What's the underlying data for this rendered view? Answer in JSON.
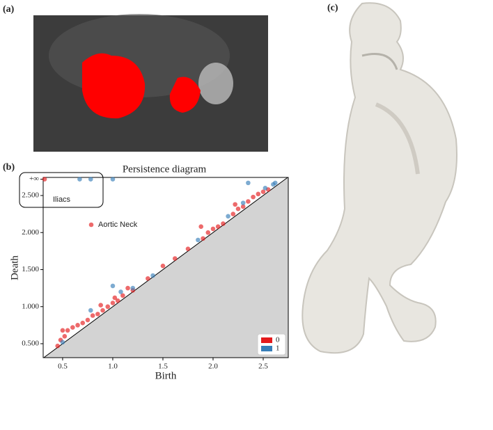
{
  "panel_labels": [
    "(a)",
    "(b)",
    "(c)"
  ],
  "chart_data": {
    "type": "scatter",
    "title": "Persistence diagram",
    "x_label": "Birth",
    "y_label": "Death",
    "xlim": [
      0.306,
      2.75
    ],
    "ylim": [
      0.312,
      2.744
    ],
    "xticks": [
      {
        "value": 0.5,
        "label": "0.5"
      },
      {
        "value": 1,
        "label": "1.0"
      },
      {
        "value": 1.5,
        "label": "1.5"
      },
      {
        "value": 2,
        "label": "2.0"
      },
      {
        "value": 2.5,
        "label": "2.5"
      }
    ],
    "yticks": [
      {
        "value": 0.5,
        "label": "0.500"
      },
      {
        "value": 1,
        "label": "1.000"
      },
      {
        "value": 1.5,
        "label": "1.500"
      },
      {
        "value": 2,
        "label": "2.000"
      },
      {
        "value": 2.5,
        "label": "2.500"
      },
      {
        "value": 2.72,
        "label": "+∞"
      }
    ],
    "legend_position": "lower right",
    "series": [
      {
        "name": "0",
        "color": "#e41a1c",
        "x": [
          0.32,
          0.45,
          0.48,
          0.5,
          0.55,
          0.52,
          0.6,
          0.65,
          0.7,
          0.75,
          0.8,
          0.85,
          0.9,
          0.95,
          1.0,
          1.02,
          0.88,
          1.05,
          1.1,
          1.2,
          1.35,
          1.5,
          1.62,
          1.75,
          1.9,
          1.95,
          2.0,
          2.05,
          2.1,
          2.2,
          2.25,
          2.3,
          2.35,
          2.4,
          2.45,
          2.5,
          2.55,
          1.88,
          2.22,
          1.15
        ],
        "values": [
          2.72,
          0.47,
          0.55,
          0.68,
          0.68,
          0.6,
          0.72,
          0.75,
          0.78,
          0.82,
          0.88,
          0.9,
          0.95,
          1.0,
          1.05,
          1.12,
          1.02,
          1.08,
          1.15,
          1.22,
          1.38,
          1.55,
          1.65,
          1.78,
          1.92,
          2.0,
          2.05,
          2.08,
          2.12,
          2.25,
          2.32,
          2.35,
          2.42,
          2.48,
          2.52,
          2.55,
          2.58,
          2.08,
          2.38,
          1.25
        ]
      },
      {
        "name": "1",
        "color": "#377eb8",
        "x": [
          0.67,
          0.78,
          1.0,
          2.35,
          2.62,
          0.78,
          1.0,
          1.08,
          1.2,
          1.4,
          1.85,
          2.15,
          2.52,
          2.6,
          0.5,
          2.3
        ],
        "values": [
          2.72,
          2.72,
          2.72,
          2.67,
          2.67,
          0.95,
          1.28,
          1.2,
          1.25,
          1.42,
          1.9,
          2.22,
          2.6,
          2.65,
          0.52,
          2.4
        ]
      }
    ],
    "annotations": {
      "box_label": "Iliacs",
      "point_label": "Aortic Neck"
    }
  }
}
